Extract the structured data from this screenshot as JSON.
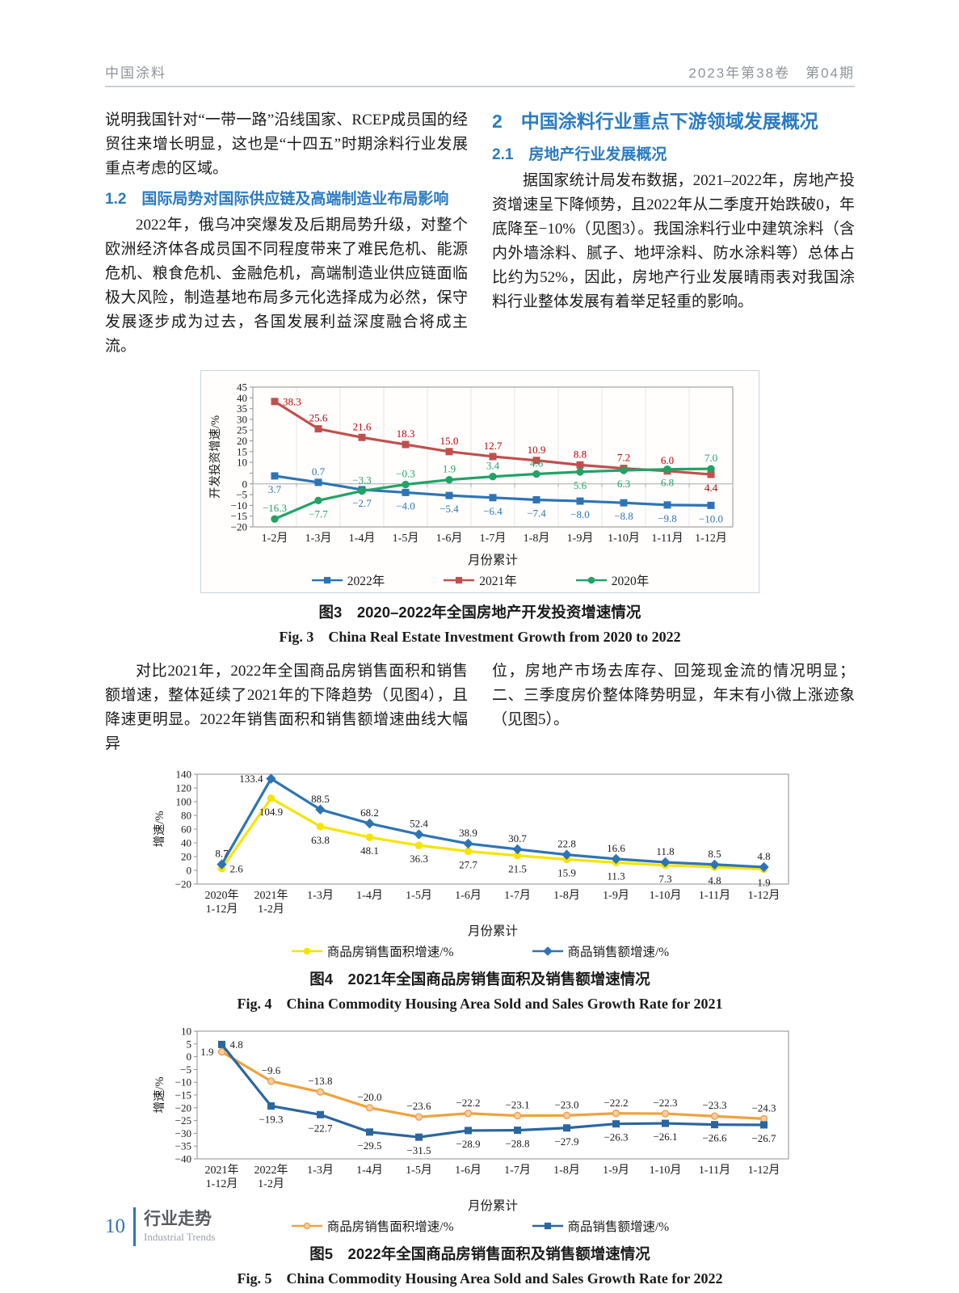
{
  "page": {
    "header": {
      "journal": "中国涂料",
      "issue": "2023年第38卷　第04期"
    },
    "footer": {
      "page_number": "10",
      "section_cn": "行业走势",
      "section_en": "Industrial Trends"
    }
  },
  "article": {
    "left_col": {
      "para1": "说明我国针对“一带一路”沿线国家、RCEP成员国的经贸往来增长明显，这也是“十四五”时期涂料行业发展重点考虑的区域。",
      "heading_1_2": "1.2　国际局势对国际供应链及高端制造业布局影响",
      "para2": "2022年，俄乌冲突爆发及后期局势升级，对整个欧洲经济体各成员国不同程度带来了难民危机、能源危机、粮食危机、金融危机，高端制造业供应链面临极大风险，制造基地布局多元化选择成为必然，保守发展逐步成为过去，各国发展利益深度融合将成主流。"
    },
    "right_col": {
      "heading_2": "2　中国涂料行业重点下游领域发展概况",
      "heading_2_1": "2.1　房地产行业发展概况",
      "para1": "据国家统计局发布数据，2021–2022年，房地产投资增速呈下降倾势，且2022年从二季度开始跌破0，年底降至−10%（见图3）。我国涂料行业中建筑涂料（含内外墙涂料、腻子、地坪涂料、防水涂料等）总体占比约为52%，因此，房地产行业发展晴雨表对我国涂料行业整体发展有着举足轻重的影响。"
    },
    "mid_left": "对比2021年，2022年全国商品房销售面积和销售额增速，整体延续了2021年的下降趋势（见图4），且降速更明显。2022年销售面积和销售额增速曲线大幅异",
    "mid_right": "位，房地产市场去库存、回笼现金流的情况明显；二、三季度房价整体降势明显，年末有小微上涨迹象（见图5）。"
  },
  "figures": [
    {
      "caption_cn": "图3　2020–2022年全国房地产开发投资增速情况",
      "caption_en": "Fig. 3　China Real Estate Investment Growth from 2020 to 2022"
    },
    {
      "caption_cn": "图4　2021年全国商品房销售面积及销售额增速情况",
      "caption_en": "Fig. 4　China Commodity Housing Area Sold and Sales Growth Rate for 2021"
    },
    {
      "caption_cn": "图5　2022年全国商品房销售面积及销售额增速情况",
      "caption_en": "Fig. 5　China Commodity Housing Area Sold and Sales Growth Rate for 2022"
    }
  ],
  "chart_data": [
    {
      "type": "line",
      "title": "2020–2022年全国房地产开发投资增速情况",
      "categories": [
        "1-2月",
        "1-3月",
        "1-4月",
        "1-5月",
        "1-6月",
        "1-7月",
        "1-8月",
        "1-9月",
        "1-10月",
        "1-11月",
        "1-12月"
      ],
      "xlabel": "月份累计",
      "ylabel": "开发投资增速/%",
      "ylim": [
        -20,
        45
      ],
      "ystep": 5,
      "y_label_skip": [
        5
      ],
      "grid_v": true,
      "zero_axis": true,
      "legend_position": "bottom",
      "series": [
        {
          "name": "2022年",
          "color": "#2e74b5",
          "marker": "square",
          "label_color": "#2e74b5",
          "values": [
            3.7,
            0.7,
            -2.7,
            -4.0,
            -5.4,
            -6.4,
            -7.4,
            -8.0,
            -8.8,
            -9.8,
            -10.0
          ],
          "label_pos": [
            "b",
            "a",
            "b",
            "b",
            "b",
            "b",
            "b",
            "b",
            "b",
            "b",
            "b"
          ]
        },
        {
          "name": "2021年",
          "color": "#c0504d",
          "marker": "square",
          "label_color": "#c00000",
          "values": [
            38.3,
            25.6,
            21.6,
            18.3,
            15.0,
            12.7,
            10.9,
            8.8,
            7.2,
            6.0,
            4.4
          ],
          "label_pos": [
            "r",
            "a",
            "a",
            "a",
            "a",
            "a",
            "a",
            "a",
            "a",
            "a",
            "b"
          ]
        },
        {
          "name": "2020年",
          "color": "#21a366",
          "marker": "circle",
          "label_color": "#21a366",
          "values": [
            -16.3,
            -7.7,
            -3.3,
            -0.3,
            1.9,
            3.4,
            4.6,
            5.6,
            6.3,
            6.8,
            7.0
          ],
          "label_pos": [
            "a",
            "b",
            "a",
            "a",
            "a",
            "a",
            "a",
            "b",
            "b",
            "b",
            "a"
          ]
        }
      ]
    },
    {
      "type": "line",
      "title": "2021年全国商品房销售面积及销售额增速情况",
      "categories": [
        "2020年\n1-12月",
        "2021年\n1-2月",
        "1-3月",
        "1-4月",
        "1-5月",
        "1-6月",
        "1-7月",
        "1-8月",
        "1-9月",
        "1-10月",
        "1-11月",
        "1-12月"
      ],
      "xlabel": "月份累计",
      "ylabel": "增速/%",
      "ylim": [
        -20,
        140
      ],
      "ystep": 20,
      "grid_v": false,
      "zero_axis": false,
      "legend_position": "bottom",
      "series": [
        {
          "name": "商品房销售面积增速/%",
          "color": "#f5e400",
          "marker": "circle",
          "label_color": "#1a1a1a",
          "values": [
            2.6,
            104.9,
            63.8,
            48.1,
            36.3,
            27.7,
            21.5,
            15.9,
            11.3,
            7.3,
            4.8,
            1.9
          ],
          "label_pos": [
            "r",
            "b",
            "b",
            "b",
            "b",
            "b",
            "b",
            "b",
            "b",
            "b",
            "b",
            "b"
          ]
        },
        {
          "name": "商品销售额增速/%",
          "color": "#2e74b5",
          "marker": "diamond",
          "label_color": "#1a1a1a",
          "values": [
            8.7,
            133.4,
            88.5,
            68.2,
            52.4,
            38.9,
            30.7,
            22.8,
            16.6,
            11.8,
            8.5,
            4.8
          ],
          "label_pos": [
            "a",
            "l",
            "a",
            "a",
            "a",
            "a",
            "a",
            "a",
            "a",
            "a",
            "a",
            "a"
          ]
        }
      ]
    },
    {
      "type": "line",
      "title": "2022年全国商品房销售面积及销售额增速情况",
      "categories": [
        "2021年\n1-12月",
        "2022年\n1-2月",
        "1-3月",
        "1-4月",
        "1-5月",
        "1-6月",
        "1-7月",
        "1-8月",
        "1-9月",
        "1-10月",
        "1-11月",
        "1-12月"
      ],
      "xlabel": "月份累计",
      "ylabel": "增速/%",
      "ylim": [
        -40,
        10
      ],
      "ystep": 5,
      "grid_v": false,
      "zero_axis": false,
      "legend_position": "bottom",
      "series": [
        {
          "name": "商品房销售面积增速/%",
          "color": "#efa23d",
          "marker": "circle",
          "marker_fill": "#f8cbad",
          "label_color": "#1a1a1a",
          "values": [
            1.9,
            -9.6,
            -13.8,
            -20.0,
            -23.6,
            -22.2,
            -23.1,
            -23.0,
            -22.2,
            -22.3,
            -23.3,
            -24.3
          ],
          "label_pos": [
            "l",
            "a",
            "a",
            "a",
            "a",
            "a",
            "a",
            "a",
            "a",
            "a",
            "a",
            "a"
          ]
        },
        {
          "name": "商品销售额增速/%",
          "color": "#2b669f",
          "marker": "square",
          "label_color": "#1a1a1a",
          "values": [
            4.8,
            -19.3,
            -22.7,
            -29.5,
            -31.5,
            -28.9,
            -28.8,
            -27.9,
            -26.3,
            -26.1,
            -26.6,
            -26.7
          ],
          "label_pos": [
            "r",
            "b",
            "b",
            "b",
            "b",
            "b",
            "b",
            "b",
            "b",
            "b",
            "b",
            "b"
          ]
        }
      ]
    }
  ]
}
